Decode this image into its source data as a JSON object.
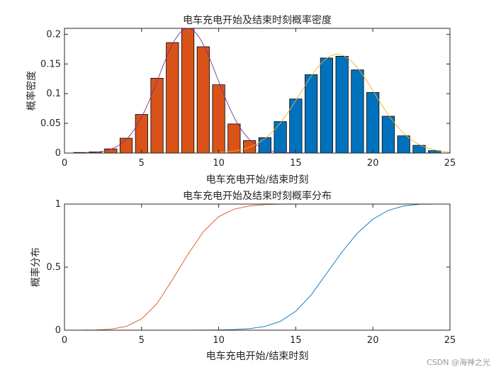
{
  "watermark": "CSDN @海神之光",
  "colors": {
    "start_bar": "#D95319",
    "end_bar": "#0072BD",
    "start_fit": "#7E2F8E",
    "end_fit": "#EDB120",
    "cdf_start": "#D95319",
    "cdf_end": "#0072BD"
  },
  "chart_data": [
    {
      "type": "bar",
      "title": "电车充电开始及结束时刻概率密度",
      "xlabel": "电车充电开始/结束时刻",
      "ylabel": "概率密度",
      "xlim": [
        0,
        25
      ],
      "ylim": [
        0,
        0.21
      ],
      "xticks": [
        "0",
        "5",
        "10",
        "15",
        "20",
        "25"
      ],
      "yticks": [
        "0",
        "0.05",
        "0.1",
        "0.15",
        "0.2"
      ],
      "ytick_values": [
        0,
        0.05,
        0.1,
        0.15,
        0.2
      ],
      "bar_width": 0.8,
      "series": [
        {
          "x": [
            1,
            2,
            3,
            4,
            5,
            6,
            7,
            8,
            9,
            10,
            11,
            12,
            13,
            14
          ],
          "values": [
            0.001,
            0.002,
            0.007,
            0.025,
            0.065,
            0.126,
            0.186,
            0.21,
            0.179,
            0.115,
            0.049,
            0.021,
            0.005,
            0.001
          ]
        },
        {
          "x": [
            13,
            14,
            15,
            16,
            17,
            18,
            19,
            20,
            21,
            22,
            23,
            24
          ],
          "values": [
            0.026,
            0.053,
            0.091,
            0.132,
            0.16,
            0.163,
            0.14,
            0.102,
            0.062,
            0.029,
            0.013,
            0.004
          ]
        }
      ],
      "fits": [
        {
          "mu": 8,
          "sigma": 1.9,
          "x_range": [
            0,
            25
          ]
        },
        {
          "mu": 17.7,
          "sigma": 2.4,
          "x_range": [
            0,
            25
          ]
        }
      ]
    },
    {
      "type": "line",
      "title": "电车充电开始及结束时刻概率分布",
      "xlabel": "电车充电开始/结束时刻",
      "ylabel": "概率分布",
      "xlim": [
        0,
        25
      ],
      "ylim": [
        0,
        1
      ],
      "xticks": [
        "0",
        "5",
        "10",
        "15",
        "20",
        "25"
      ],
      "yticks": [
        "0",
        "0.5",
        "1"
      ],
      "ytick_values": [
        0,
        0.5,
        1
      ],
      "series": [
        {
          "x": [
            1,
            2,
            3,
            4,
            5,
            6,
            7,
            8,
            9,
            10,
            11,
            12,
            13,
            14,
            15,
            16,
            17,
            18,
            19,
            20,
            21,
            22,
            23,
            24,
            25
          ],
          "values": [
            0.0,
            0.002,
            0.008,
            0.03,
            0.09,
            0.21,
            0.4,
            0.6,
            0.78,
            0.9,
            0.96,
            0.985,
            0.996,
            0.999,
            1,
            1,
            1,
            1,
            1,
            1,
            1,
            1,
            1,
            1,
            1
          ]
        },
        {
          "x": [
            1,
            2,
            3,
            4,
            5,
            6,
            7,
            8,
            9,
            10,
            11,
            12,
            13,
            14,
            15,
            16,
            17,
            18,
            19,
            20,
            21,
            22,
            23,
            24,
            25
          ],
          "values": [
            0,
            0,
            0,
            0,
            0,
            0,
            0,
            0,
            0.001,
            0.002,
            0.005,
            0.012,
            0.03,
            0.07,
            0.15,
            0.28,
            0.45,
            0.62,
            0.77,
            0.88,
            0.95,
            0.985,
            0.998,
            1,
            1
          ]
        }
      ]
    }
  ]
}
